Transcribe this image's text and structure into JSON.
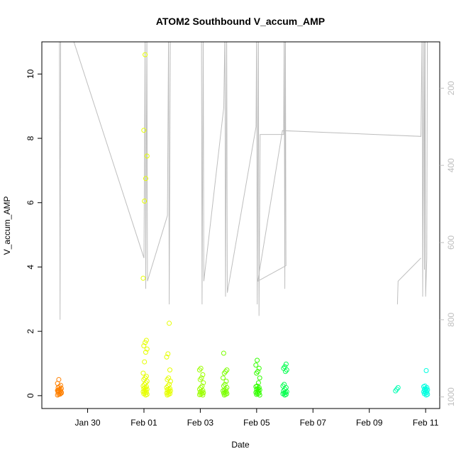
{
  "chart_data": {
    "type": "scatter",
    "title": "ATOM2 Southbound V_accum_AMP",
    "xlabel": "Date",
    "ylabel": "V_accum_AMP",
    "x_ticks": [
      "Jan 30",
      "Feb 01",
      "Feb 03",
      "Feb 05",
      "Feb 07",
      "Feb 09",
      "Feb 11"
    ],
    "y_ticks": [
      0,
      2,
      4,
      6,
      8,
      10
    ],
    "y_right_ticks": [
      200,
      400,
      600,
      800,
      1000
    ],
    "xlim": [
      "2025-01-28T09:00",
      "2025-02-11T12:00"
    ],
    "ylim": [
      -0.4,
      11
    ],
    "y_right_lim": [
      1030,
      80
    ],
    "series_colors": [
      "#FF8000",
      "#FFB300",
      "#E6FF00",
      "#9CFF00",
      "#33FF00",
      "#00FF4D",
      "#00FFB3",
      "#00FFE0"
    ],
    "line_color": "#BEBEBE",
    "scatter_groups": [
      {
        "center": "2025-01-29T00:00",
        "color": "#FF8000",
        "values": [
          0.02,
          0.04,
          0.06,
          0.08,
          0.1,
          0.12,
          0.14,
          0.16,
          0.18,
          0.2,
          0.22,
          0.25,
          0.28,
          0.32,
          0.38,
          0.5,
          0.05,
          0.1,
          0.15
        ]
      },
      {
        "center": "2025-02-01T01:00",
        "color": "#E6FF00",
        "values": [
          0.02,
          0.04,
          0.06,
          0.08,
          0.1,
          0.12,
          0.15,
          0.18,
          0.2,
          0.22,
          0.25,
          0.28,
          0.3,
          0.35,
          0.4,
          0.45,
          0.5,
          0.55,
          0.6,
          0.7,
          1.05,
          1.35,
          1.45,
          1.55,
          1.65,
          1.72,
          3.65,
          6.05,
          6.75,
          7.45,
          8.25,
          10.6
        ]
      },
      {
        "center": "2025-02-01T21:00",
        "color": "#E6FF00",
        "values": [
          0.02,
          0.04,
          0.06,
          0.08,
          0.1,
          0.12,
          0.15,
          0.18,
          0.2,
          0.22,
          0.25,
          0.3,
          0.35,
          0.45,
          0.5,
          0.55,
          0.8,
          1.2,
          1.3,
          2.25
        ]
      },
      {
        "center": "2025-02-03T01:00",
        "color": "#9CFF00",
        "values": [
          0.02,
          0.03,
          0.05,
          0.07,
          0.09,
          0.11,
          0.13,
          0.16,
          0.2,
          0.25,
          0.3,
          0.4,
          0.5,
          0.55,
          0.65,
          0.8,
          0.85
        ]
      },
      {
        "center": "2025-02-03T21:00",
        "color": "#7AFF00",
        "values": [
          0.02,
          0.04,
          0.06,
          0.08,
          0.1,
          0.12,
          0.15,
          0.18,
          0.2,
          0.25,
          0.3,
          0.35,
          0.45,
          0.55,
          0.7,
          0.75,
          0.8,
          1.32
        ]
      },
      {
        "center": "2025-02-05T01:00",
        "color": "#33FF00",
        "values": [
          0.02,
          0.04,
          0.06,
          0.08,
          0.1,
          0.12,
          0.15,
          0.18,
          0.2,
          0.22,
          0.25,
          0.28,
          0.3,
          0.4,
          0.55,
          0.7,
          0.75,
          0.85,
          0.95,
          1.1
        ]
      },
      {
        "center": "2025-02-06T00:00",
        "color": "#00FF4D",
        "values": [
          0.02,
          0.04,
          0.06,
          0.08,
          0.1,
          0.12,
          0.15,
          0.2,
          0.25,
          0.3,
          0.35,
          0.75,
          0.8,
          0.85,
          0.9,
          0.98
        ]
      },
      {
        "center": "2025-02-10T00:00",
        "color": "#00FFB3",
        "values": [
          0.15,
          0.2,
          0.25
        ]
      },
      {
        "center": "2025-02-11T00:00",
        "color": "#00FFE0",
        "values": [
          0.02,
          0.04,
          0.06,
          0.08,
          0.1,
          0.12,
          0.14,
          0.16,
          0.18,
          0.2,
          0.22,
          0.25,
          0.28,
          0.3,
          0.78
        ]
      }
    ],
    "secondary_line": [
      [
        "2025-01-29T00:00",
        50
      ],
      [
        "2025-01-29T00:30",
        800
      ],
      [
        "2025-01-29T01:00",
        50
      ],
      [
        "2025-01-29T08:00",
        40
      ],
      [
        "2025-02-01T00:00",
        640
      ],
      [
        "2025-02-01T01:00",
        50
      ],
      [
        "2025-02-01T01:30",
        720
      ],
      [
        "2025-02-01T02:30",
        50
      ],
      [
        "2025-02-01T03:00",
        700
      ],
      [
        "2025-02-01T20:00",
        530
      ],
      [
        "2025-02-01T21:00",
        50
      ],
      [
        "2025-02-01T21:30",
        760
      ],
      [
        "2025-02-01T22:30",
        50
      ],
      [
        "2025-02-02T20:00",
        50
      ],
      [
        "2025-02-03T01:00",
        50
      ],
      [
        "2025-02-03T01:30",
        760
      ],
      [
        "2025-02-03T02:30",
        50
      ],
      [
        "2025-02-03T03:00",
        700
      ],
      [
        "2025-02-03T20:00",
        250
      ],
      [
        "2025-02-03T21:00",
        50
      ],
      [
        "2025-02-03T21:30",
        740
      ],
      [
        "2025-02-03T22:30",
        50
      ],
      [
        "2025-02-03T23:00",
        730
      ],
      [
        "2025-02-04T23:30",
        300
      ],
      [
        "2025-02-05T00:00",
        50
      ],
      [
        "2025-02-05T00:30",
        760
      ],
      [
        "2025-02-05T01:30",
        50
      ],
      [
        "2025-02-05T02:00",
        790
      ],
      [
        "2025-02-05T03:00",
        320
      ],
      [
        "2025-02-05T23:00",
        320
      ],
      [
        "2025-02-05T23:30",
        50
      ],
      [
        "2025-02-06T00:00",
        720
      ],
      [
        "2025-02-06T00:30",
        50
      ],
      [
        "2025-02-06T01:00",
        660
      ],
      [
        "2025-02-05T01:00",
        700
      ],
      [
        "2025-02-05T22:00",
        310
      ],
      [
        "2025-02-10T20:00",
        325
      ],
      [
        "2025-02-10T21:00",
        50
      ],
      [
        "2025-02-10T21:30",
        740
      ],
      [
        "2025-02-10T22:30",
        50
      ],
      [
        "2025-02-10T23:00",
        670
      ],
      [
        "2025-02-10T23:30",
        50
      ],
      [
        "2025-02-11T00:00",
        740
      ],
      [
        "2025-02-11T01:00",
        640
      ],
      [
        "2025-02-11T01:30",
        50
      ]
    ],
    "secondary_line_b": [
      [
        "2025-02-10T00:00",
        760
      ],
      [
        "2025-02-10T00:30",
        700
      ],
      [
        "2025-02-10T20:00",
        640
      ]
    ]
  }
}
